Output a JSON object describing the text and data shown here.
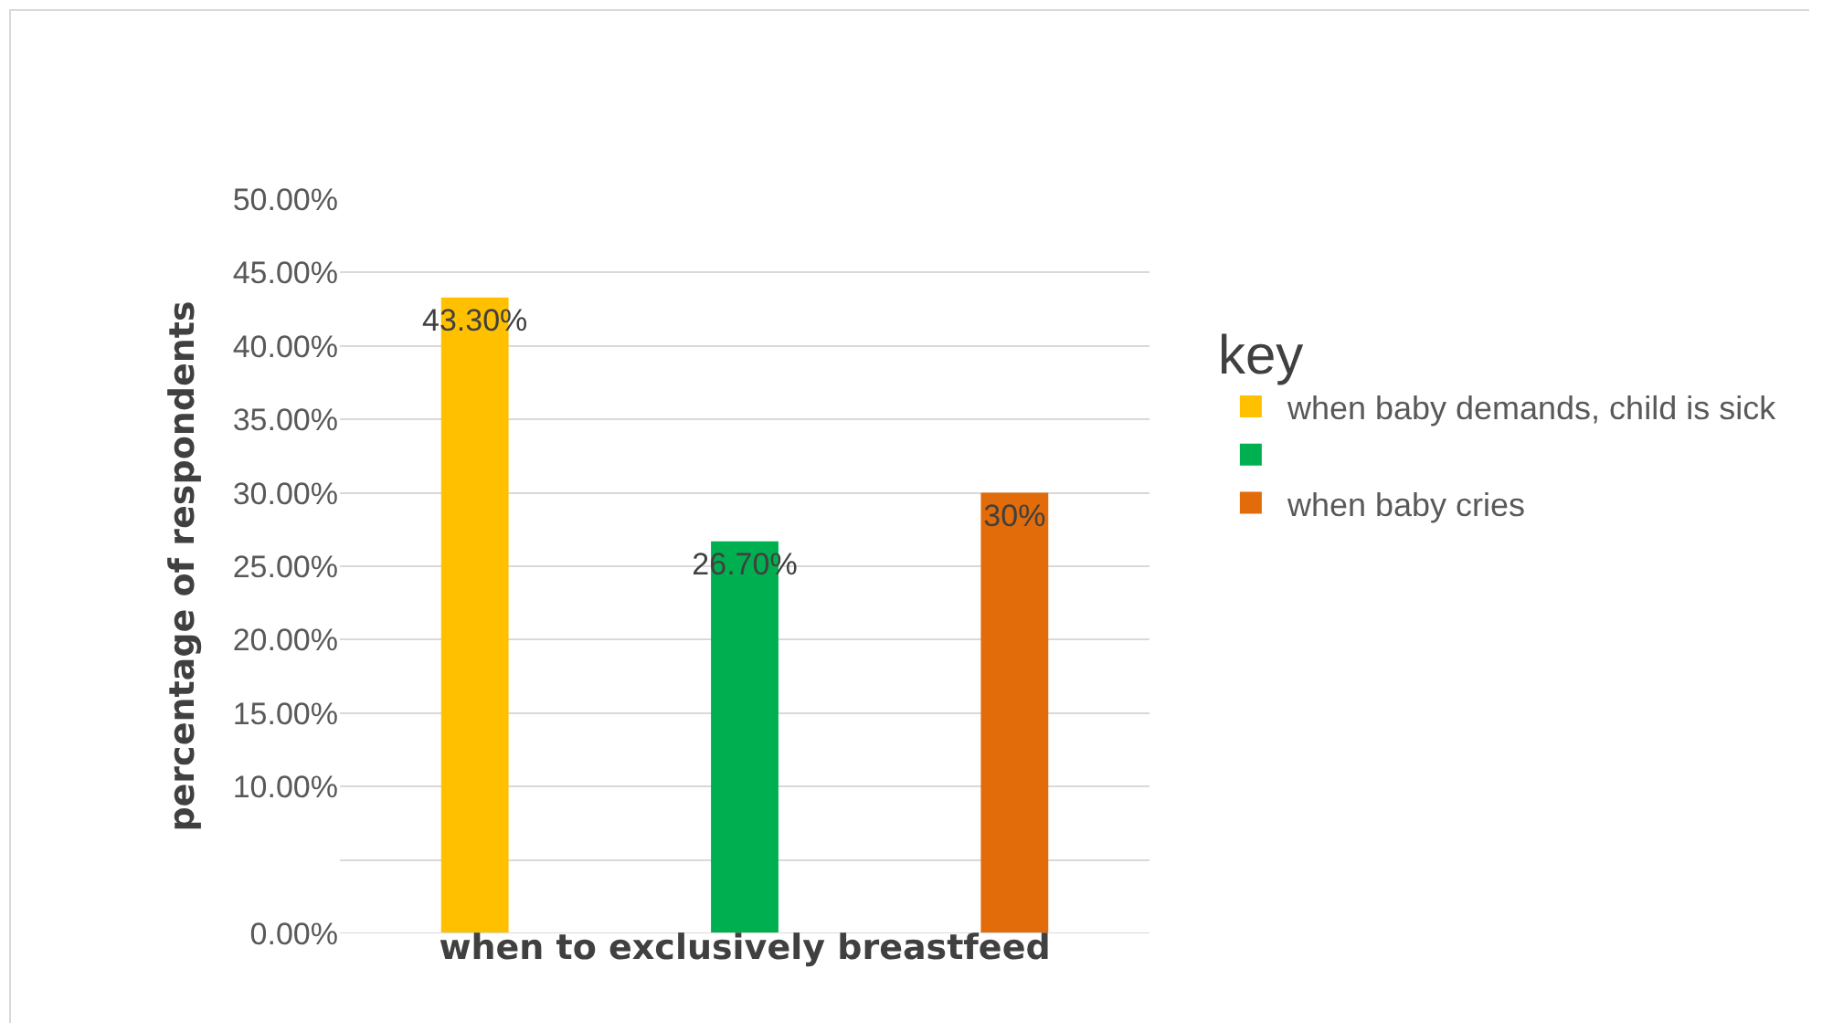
{
  "chart_data": {
    "type": "bar",
    "xlabel": "when to exclusively breastfeed",
    "ylabel": "percentage of respondents",
    "legend_title": "key",
    "legend": "right",
    "grid": "y",
    "categories": [
      null
    ],
    "series": [
      {
        "name": "when baby demands, child is sick",
        "color": "#ffc000",
        "values": [
          43.3
        ],
        "value_labels": [
          "43.30%"
        ]
      },
      {
        "color": "#00b050",
        "values": [
          26.7
        ],
        "value_labels": [
          "26.70%"
        ]
      },
      {
        "name": "when baby cries",
        "color": "#e36c0a",
        "values": [
          30
        ],
        "value_labels": [
          "30%"
        ]
      }
    ],
    "ylim": [
      0,
      50
    ],
    "yticks": [
      {
        "value": 0,
        "label": "0.00%"
      },
      {
        "value": 5,
        "label": null
      },
      {
        "value": 10,
        "label": "10.00%"
      },
      {
        "value": 15,
        "label": "15.00%"
      },
      {
        "value": 20,
        "label": "20.00%"
      },
      {
        "value": 25,
        "label": "25.00%"
      },
      {
        "value": 30,
        "label": "30.00%"
      },
      {
        "value": 35,
        "label": "35.00%"
      },
      {
        "value": 40,
        "label": "40.00%"
      },
      {
        "value": 45,
        "label": "45.00%"
      },
      {
        "value": 50,
        "label": "50.00%"
      }
    ]
  }
}
